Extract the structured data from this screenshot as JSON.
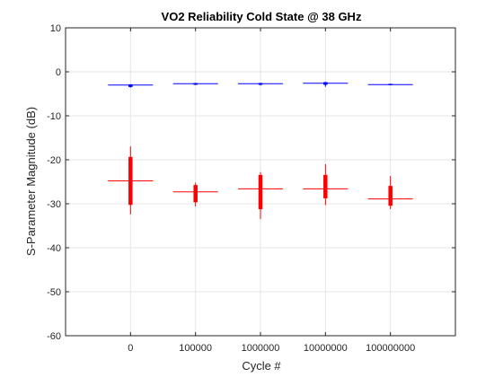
{
  "chart_data": {
    "type": "box",
    "title": "VO2 Reliability Cold State @ 38 GHz",
    "xlabel": "Cycle #",
    "ylabel": "S-Parameter Magnitude (dB)",
    "categories": [
      "0",
      "100000",
      "1000000",
      "10000000",
      "100000000"
    ],
    "ylim": [
      -60,
      10
    ],
    "yticks": [
      10,
      0,
      -10,
      -20,
      -30,
      -40,
      -50,
      -60
    ],
    "grid": true,
    "legend": "none",
    "series": [
      {
        "color": "#0000ff",
        "boxes": [
          {
            "whisker_low": -3.6,
            "q1": -3.4,
            "median": -3.0,
            "q3": -2.9,
            "whisker_high": -2.8
          },
          {
            "whisker_low": -3.0,
            "q1": -2.9,
            "median": -2.7,
            "q3": -2.6,
            "whisker_high": -2.5
          },
          {
            "whisker_low": -3.1,
            "q1": -2.9,
            "median": -2.7,
            "q3": -2.6,
            "whisker_high": -2.5
          },
          {
            "whisker_low": -3.4,
            "q1": -2.9,
            "median": -2.6,
            "q3": -2.4,
            "whisker_high": -2.3
          },
          {
            "whisker_low": -3.1,
            "q1": -3.0,
            "median": -2.9,
            "q3": -2.8,
            "whisker_high": -2.7
          }
        ]
      },
      {
        "color": "#ff0000",
        "boxes": [
          {
            "whisker_low": -32.4,
            "q1": -30.2,
            "median": -24.8,
            "q3": -19.4,
            "whisker_high": -17.0
          },
          {
            "whisker_low": -30.6,
            "q1": -29.6,
            "median": -27.3,
            "q3": -25.8,
            "whisker_high": -25.2
          },
          {
            "whisker_low": -33.5,
            "q1": -31.2,
            "median": -26.6,
            "q3": -23.5,
            "whisker_high": -22.8
          },
          {
            "whisker_low": -30.3,
            "q1": -28.7,
            "median": -26.6,
            "q3": -23.5,
            "whisker_high": -21.0
          },
          {
            "whisker_low": -31.2,
            "q1": -30.4,
            "median": -28.9,
            "q3": -26.0,
            "whisker_high": -23.7
          }
        ]
      }
    ]
  }
}
